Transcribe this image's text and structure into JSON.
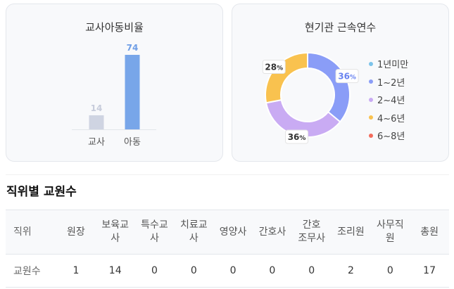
{
  "ratio_card": {
    "title": "교사아동비율",
    "chart_data": {
      "type": "bar",
      "categories": [
        "교사",
        "아동"
      ],
      "values": [
        14,
        74
      ],
      "colors": [
        "#cfd4e2",
        "#78a6e9"
      ],
      "value_label_colors": [
        "#c7ccdb",
        "#6f9ee6"
      ]
    }
  },
  "tenure_card": {
    "title": "현기관 근속연수",
    "chart_data": {
      "type": "pie",
      "categories": [
        "1년미만",
        "1~2년",
        "2~4년",
        "4~6년",
        "6~8년"
      ],
      "values": [
        0,
        36,
        36,
        28,
        0
      ],
      "colors": [
        "#7cc3ea",
        "#8a9df7",
        "#c9abf3",
        "#f9c24f",
        "#f36b5b"
      ],
      "value_suffix": "%"
    }
  },
  "staff_section": {
    "title": "직위별 교원수",
    "header": [
      "직위",
      "원장",
      "보육교사",
      "특수교사",
      "치료교사",
      "영양사",
      "간호사",
      "간호조무사",
      "조리원",
      "사무직원",
      "총원"
    ],
    "header_lines": [
      [
        "직위"
      ],
      [
        "원장"
      ],
      [
        "보육교",
        "사"
      ],
      [
        "특수교",
        "사"
      ],
      [
        "치료교",
        "사"
      ],
      [
        "영양사"
      ],
      [
        "간호사"
      ],
      [
        "간호",
        "조무사"
      ],
      [
        "조리원"
      ],
      [
        "사무직",
        "원"
      ],
      [
        "총원"
      ]
    ],
    "row": [
      "교원수",
      "1",
      "14",
      "0",
      "0",
      "0",
      "0",
      "0",
      "2",
      "0",
      "17"
    ]
  }
}
